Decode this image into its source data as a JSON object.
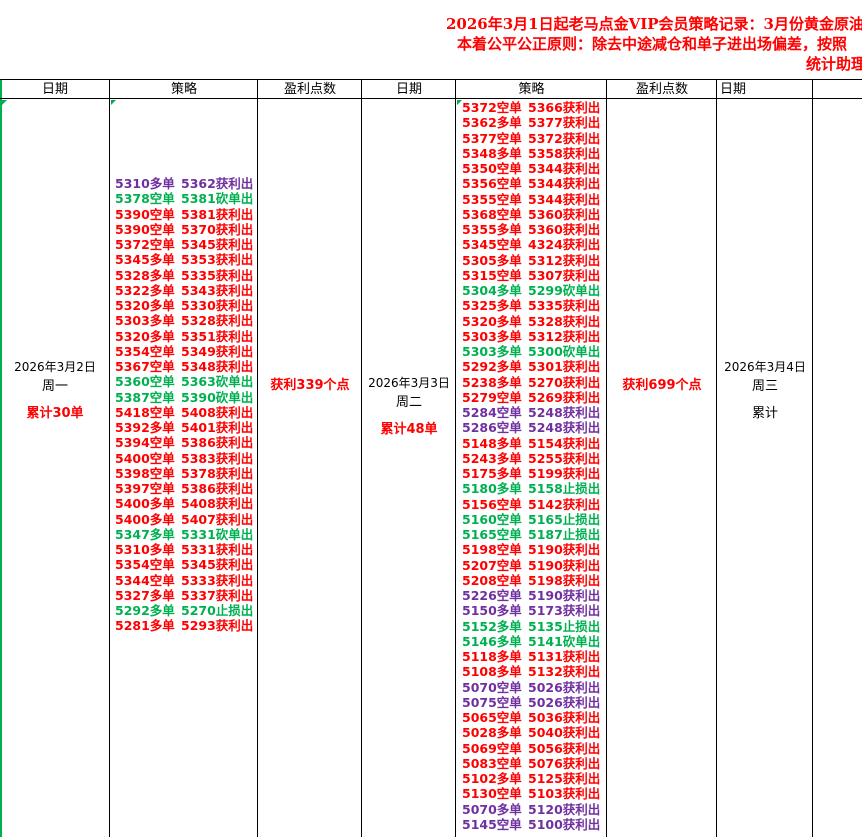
{
  "title": {
    "line1": "2026年3月1日起老马点金VIP会员策略记录：3月份黄金原油",
    "line2": "本着公平公正原则：除去中途减仓和单子进出场偏差，按照",
    "line3": "统计助理"
  },
  "headers": [
    "日期",
    "策略",
    "盈利点数",
    "日期",
    "策略",
    "盈利点数",
    "日期",
    ""
  ],
  "colors": {
    "r": "#ff0000",
    "g": "#00b050",
    "p": "#7030a0"
  },
  "days": [
    {
      "date": "2026年3月2日",
      "weekday": "周一",
      "total": "累计30单",
      "profit": "获利339个点",
      "trades": [
        [
          "5310多单",
          "5362获利出",
          "p"
        ],
        [
          "5378空单",
          "5381砍单出",
          "g"
        ],
        [
          "5390空单",
          "5381获利出",
          "r"
        ],
        [
          "5390空单",
          "5370获利出",
          "r"
        ],
        [
          "5372空单",
          "5345获利出",
          "r"
        ],
        [
          "5345多单",
          "5353获利出",
          "r"
        ],
        [
          "5328多单",
          "5335获利出",
          "r"
        ],
        [
          "5322多单",
          "5343获利出",
          "r"
        ],
        [
          "5320多单",
          "5330获利出",
          "r"
        ],
        [
          "5303多单",
          "5328获利出",
          "r"
        ],
        [
          "5320多单",
          "5351获利出",
          "r"
        ],
        [
          "5354空单",
          "5349获利出",
          "r"
        ],
        [
          "5367空单",
          "5348获利出",
          "r"
        ],
        [
          "5360空单",
          "5363砍单出",
          "g"
        ],
        [
          "5387空单",
          "5390砍单出",
          "g"
        ],
        [
          "5418空单",
          "5408获利出",
          "r"
        ],
        [
          "5392多单",
          "5401获利出",
          "r"
        ],
        [
          "5394空单",
          "5386获利出",
          "r"
        ],
        [
          "5400空单",
          "5383获利出",
          "r"
        ],
        [
          "5398空单",
          "5378获利出",
          "r"
        ],
        [
          "5397空单",
          "5386获利出",
          "r"
        ],
        [
          "5400多单",
          "5408获利出",
          "r"
        ],
        [
          "5400多单",
          "5407获利出",
          "r"
        ],
        [
          "5347多单",
          "5331砍单出",
          "g"
        ],
        [
          "5310多单",
          "5331获利出",
          "r"
        ],
        [
          "5354空单",
          "5345获利出",
          "r"
        ],
        [
          "5344空单",
          "5333获利出",
          "r"
        ],
        [
          "5327多单",
          "5337获利出",
          "r"
        ],
        [
          "5292多单",
          "5270止损出",
          "g"
        ],
        [
          "5281多单",
          "5293获利出",
          "r"
        ]
      ]
    },
    {
      "date": "2026年3月3日",
      "weekday": "周二",
      "total": "累计48单",
      "profit": "获利699个点",
      "trades": [
        [
          "5372空单",
          "5366获利出",
          "r"
        ],
        [
          "5362多单",
          "5377获利出",
          "r"
        ],
        [
          "5377空单",
          "5372获利出",
          "r"
        ],
        [
          "5348多单",
          "5358获利出",
          "r"
        ],
        [
          "5350空单",
          "5344获利出",
          "r"
        ],
        [
          "5356空单",
          "5344获利出",
          "r"
        ],
        [
          "5355空单",
          "5344获利出",
          "r"
        ],
        [
          "5368空单",
          "5360获利出",
          "r"
        ],
        [
          "5355多单",
          "5360获利出",
          "r"
        ],
        [
          "5345空单",
          "4324获利出",
          "r"
        ],
        [
          "5305多单",
          "5312获利出",
          "r"
        ],
        [
          "5315空单",
          "5307获利出",
          "r"
        ],
        [
          "5304多单",
          "5299砍单出",
          "g"
        ],
        [
          "5325多单",
          "5335获利出",
          "r"
        ],
        [
          "5320多单",
          "5328获利出",
          "r"
        ],
        [
          "5303多单",
          "5312获利出",
          "r"
        ],
        [
          "5303多单",
          "5300砍单出",
          "g"
        ],
        [
          "5292多单",
          "5301获利出",
          "r"
        ],
        [
          "5238多单",
          "5270获利出",
          "r"
        ],
        [
          "5279空单",
          "5269获利出",
          "r"
        ],
        [
          "5284空单",
          "5248获利出",
          "p"
        ],
        [
          "5286空单",
          "5248获利出",
          "p"
        ],
        [
          "5148多单",
          "5154获利出",
          "r"
        ],
        [
          "5243多单",
          "5255获利出",
          "r"
        ],
        [
          "5175多单",
          "5199获利出",
          "r"
        ],
        [
          "5180多单",
          "5158止损出",
          "g"
        ],
        [
          "5156空单",
          "5142获利出",
          "r"
        ],
        [
          "5160空单",
          "5165止损出",
          "g"
        ],
        [
          "5165空单",
          "5187止损出",
          "g"
        ],
        [
          "5198空单",
          "5190获利出",
          "r"
        ],
        [
          "5207空单",
          "5190获利出",
          "r"
        ],
        [
          "5208空单",
          "5198获利出",
          "r"
        ],
        [
          "5226空单",
          "5190获利出",
          "p"
        ],
        [
          "5150多单",
          "5173获利出",
          "p"
        ],
        [
          "5152多单",
          "5135止损出",
          "g"
        ],
        [
          "5146多单",
          "5141砍单出",
          "g"
        ],
        [
          "5118多单",
          "5131获利出",
          "r"
        ],
        [
          "5108多单",
          "5132获利出",
          "r"
        ],
        [
          "5070空单",
          "5026获利出",
          "p"
        ],
        [
          "5075空单",
          "5026获利出",
          "p"
        ],
        [
          "5065空单",
          "5036获利出",
          "r"
        ],
        [
          "5028多单",
          "5040获利出",
          "r"
        ],
        [
          "5069空单",
          "5056获利出",
          "r"
        ],
        [
          "5083空单",
          "5076获利出",
          "r"
        ],
        [
          "5102多单",
          "5125获利出",
          "r"
        ],
        [
          "5130空单",
          "5103获利出",
          "r"
        ],
        [
          "5070多单",
          "5120获利出",
          "p"
        ],
        [
          "5145空单",
          "5100获利出",
          "p"
        ]
      ]
    },
    {
      "date": "2026年3月4日",
      "weekday": "周三",
      "total": "累计"
    }
  ]
}
